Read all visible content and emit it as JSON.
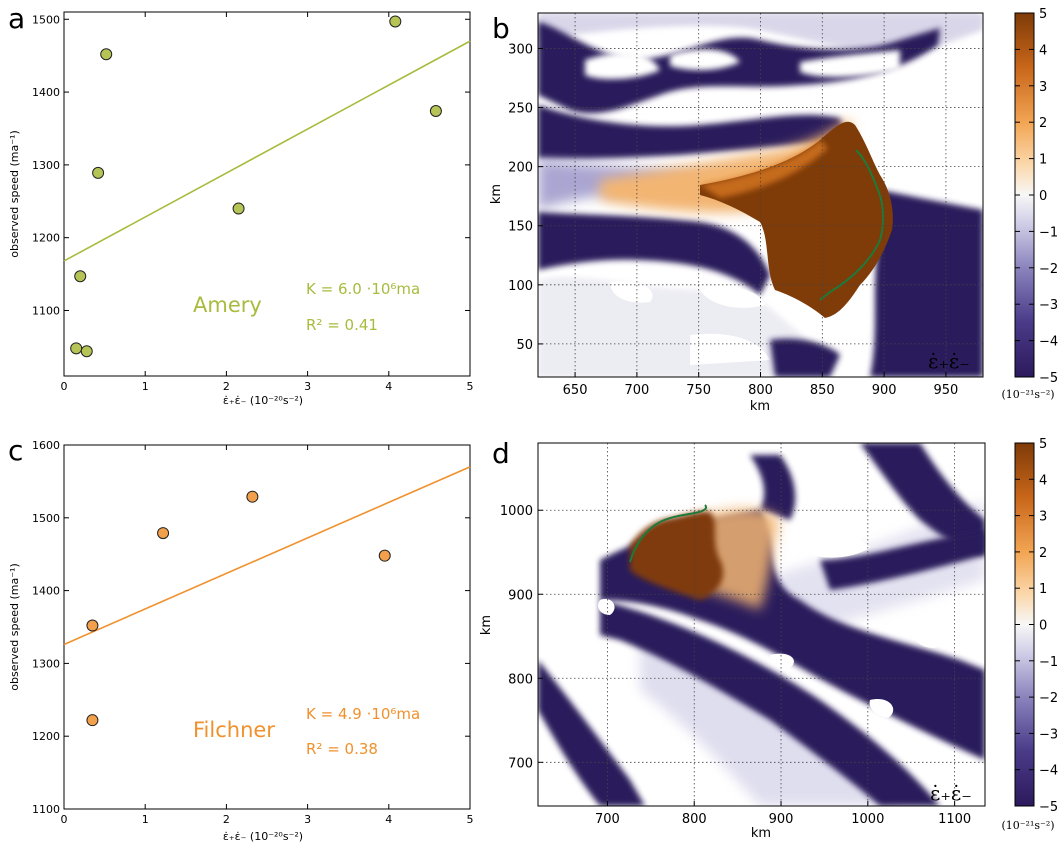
{
  "chart_data": [
    {
      "panel": "a",
      "type": "scatter",
      "color": "#a9bb3e",
      "marker_color": "#b6c455",
      "xlabel": "ε̇₊ε̇₋ (10⁻²⁰s⁻²)",
      "ylabel": "observed speed (ma⁻¹)",
      "xlim": [
        0,
        5
      ],
      "ylim": [
        1010,
        1510
      ],
      "xticks": [
        "0",
        "1",
        "2",
        "3",
        "4",
        "5"
      ],
      "yticks": [
        "1100",
        "1200",
        "1300",
        "1400",
        "1500"
      ],
      "points": [
        {
          "x": 0.15,
          "y": 1048
        },
        {
          "x": 0.28,
          "y": 1044
        },
        {
          "x": 0.2,
          "y": 1147
        },
        {
          "x": 0.42,
          "y": 1289
        },
        {
          "x": 0.52,
          "y": 1452
        },
        {
          "x": 2.15,
          "y": 1240
        },
        {
          "x": 4.08,
          "y": 1497
        },
        {
          "x": 4.58,
          "y": 1374
        }
      ],
      "fit_line": {
        "x": [
          0,
          5
        ],
        "y": [
          1168,
          1470
        ]
      },
      "glacier_name": "Amery",
      "k_text": "K = 6.0 ·10⁶ma",
      "r2_text": "R² = 0.41"
    },
    {
      "panel": "c",
      "type": "scatter",
      "color": "#f0912d",
      "marker_color": "#f3a04c",
      "xlabel": "ε̇₊ε̇₋ (10⁻²⁰s⁻²)",
      "ylabel": "observed speed (ma⁻¹)",
      "xlim": [
        0,
        5
      ],
      "ylim": [
        1100,
        1600
      ],
      "xticks": [
        "0",
        "1",
        "2",
        "3",
        "4",
        "5"
      ],
      "yticks": [
        "1100",
        "1200",
        "1300",
        "1400",
        "1500",
        "1600"
      ],
      "points": [
        {
          "x": 0.35,
          "y": 1352
        },
        {
          "x": 0.35,
          "y": 1222
        },
        {
          "x": 1.22,
          "y": 1479
        },
        {
          "x": 2.32,
          "y": 1529
        },
        {
          "x": 3.95,
          "y": 1448
        }
      ],
      "fit_line": {
        "x": [
          0,
          5
        ],
        "y": [
          1326,
          1570
        ]
      },
      "glacier_name": "Filchner",
      "k_text": "K = 4.9 ·10⁶ma",
      "r2_text": "R² = 0.38"
    },
    {
      "panel": "b",
      "type": "heatmap",
      "xlabel": "km",
      "ylabel": "km",
      "xlim": [
        620,
        980
      ],
      "ylim": [
        22,
        330
      ],
      "xticks": [
        "650",
        "700",
        "750",
        "800",
        "850",
        "900",
        "950"
      ],
      "yticks": [
        "50",
        "100",
        "150",
        "200",
        "250",
        "300"
      ],
      "field_label": "ε̇₊ε̇₋",
      "colorbar_ticks": [
        "−5",
        "−4",
        "−3",
        "−2",
        "−1",
        "0",
        "1",
        "2",
        "3",
        "4",
        "5"
      ],
      "colorbar_unit": "(10⁻²¹s⁻²)",
      "grid": true
    },
    {
      "panel": "d",
      "type": "heatmap",
      "xlabel": "km",
      "ylabel": "km",
      "xlim": [
        620,
        1135
      ],
      "ylim": [
        648,
        1080
      ],
      "xticks": [
        "700",
        "800",
        "900",
        "1000",
        "1100"
      ],
      "yticks": [
        "700",
        "800",
        "900",
        "1000"
      ],
      "field_label": "ε̇₊ε̇₋",
      "colorbar_ticks": [
        "−5",
        "−4",
        "−3",
        "−2",
        "−1",
        "0",
        "1",
        "2",
        "3",
        "4",
        "5"
      ],
      "colorbar_unit": "(10⁻²¹s⁻²)",
      "grid": true
    }
  ],
  "panel_letters": {
    "a": "a",
    "b": "b",
    "c": "c",
    "d": "d"
  },
  "colors": {
    "neg_dark": "#2c1a5c",
    "neg_mid": "#7e76b3",
    "neg_light": "#d8d6ea",
    "zero": "#f7f7f7",
    "pos_light": "#f6c48d",
    "pos_mid": "#e0822a",
    "pos_dark": "#7f3b08",
    "front_line": "#1e7a3a"
  }
}
